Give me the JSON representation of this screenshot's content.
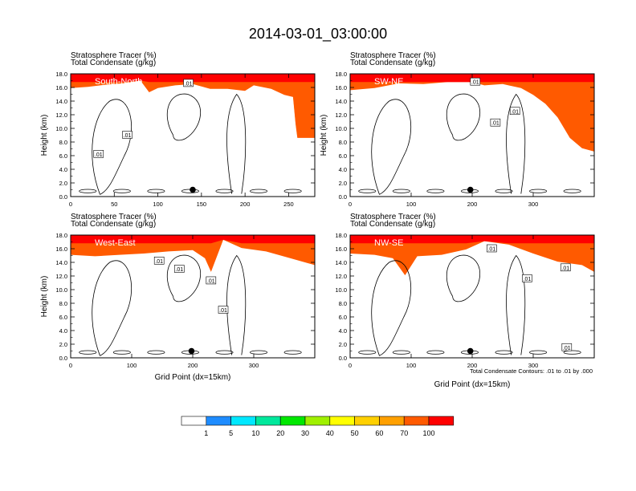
{
  "title": "2014-03-01_03:00:00",
  "footnote": "Total Condensate Contours: .01 to .01 by .000",
  "chart_data": [
    {
      "type": "heatmap",
      "header_line1": "Stratosphere Tracer   (%)",
      "header_line2": "Total Condensate   (g/kg)",
      "label": "South-North",
      "xlabel": "",
      "ylabel": "Height (km)",
      "xlim": [
        0,
        280
      ],
      "ylim": [
        0,
        18
      ],
      "xticks": [
        0,
        50,
        100,
        150,
        200,
        250
      ],
      "yticks": [
        "0.0",
        "2.0",
        "4.0",
        "6.0",
        "8.0",
        "10.0",
        "12.0",
        "14.0",
        "16.0",
        "18.0"
      ],
      "marker": [
        140,
        1.0
      ],
      "tracer_base_km": [
        [
          0,
          15.8
        ],
        [
          20,
          16
        ],
        [
          40,
          16.3
        ],
        [
          60,
          16.5
        ],
        [
          80,
          16.9
        ],
        [
          90,
          15.2
        ],
        [
          100,
          15.8
        ],
        [
          120,
          16.2
        ],
        [
          140,
          16.4
        ],
        [
          160,
          15.7
        ],
        [
          180,
          15.7
        ],
        [
          200,
          15.4
        ],
        [
          210,
          16.2
        ],
        [
          230,
          15.7
        ],
        [
          245,
          14.8
        ],
        [
          255,
          14.5
        ],
        [
          258,
          10.5
        ],
        [
          260,
          8.5
        ],
        [
          280,
          8.5
        ]
      ],
      "contour_labels": [
        {
          "text": ".01",
          "x": 135,
          "y": 16.6
        },
        {
          "text": ".01",
          "x": 65,
          "y": 9.0
        },
        {
          "text": ".01",
          "x": 32,
          "y": 6.2
        }
      ]
    },
    {
      "type": "heatmap",
      "header_line1": "Stratosphere Tracer   (%)",
      "header_line2": "Total Condensate   (g/kg)",
      "label": "SW-NE",
      "xlabel": "",
      "ylabel": "Height (km)",
      "xlim": [
        0,
        400
      ],
      "ylim": [
        0,
        18
      ],
      "xticks": [
        0,
        100,
        200,
        300
      ],
      "yticks": [
        "0.0",
        "2.0",
        "4.0",
        "6.0",
        "8.0",
        "10.0",
        "12.0",
        "14.0",
        "16.0",
        "18.0"
      ],
      "marker": [
        197,
        1.0
      ],
      "tracer_base_km": [
        [
          0,
          15.5
        ],
        [
          40,
          15.8
        ],
        [
          80,
          16.5
        ],
        [
          120,
          16.4
        ],
        [
          160,
          16.7
        ],
        [
          200,
          16.7
        ],
        [
          220,
          16.2
        ],
        [
          250,
          16.4
        ],
        [
          280,
          15.8
        ],
        [
          300,
          14.8
        ],
        [
          320,
          13.5
        ],
        [
          340,
          11.5
        ],
        [
          360,
          8.5
        ],
        [
          380,
          7.0
        ],
        [
          400,
          6.5
        ]
      ],
      "contour_labels": [
        {
          "text": ".01",
          "x": 205,
          "y": 16.8
        },
        {
          "text": ".01",
          "x": 270,
          "y": 12.5
        },
        {
          "text": ".01",
          "x": 238,
          "y": 10.8
        }
      ]
    },
    {
      "type": "heatmap",
      "header_line1": "Stratosphere Tracer   (%)",
      "header_line2": "Total Condensate   (g/kg)",
      "label": "West-East",
      "xlabel": "Grid Point (dx=15km)",
      "ylabel": "Height (km)",
      "xlim": [
        0,
        400
      ],
      "ylim": [
        0,
        18
      ],
      "xticks": [
        0,
        100,
        200,
        300
      ],
      "yticks": [
        "0.0",
        "2.0",
        "4.0",
        "6.0",
        "8.0",
        "10.0",
        "12.0",
        "14.0",
        "16.0",
        "18.0"
      ],
      "marker": [
        198,
        1.0
      ],
      "tracer_base_km": [
        [
          0,
          15.0
        ],
        [
          40,
          14.8
        ],
        [
          80,
          15.0
        ],
        [
          120,
          15.2
        ],
        [
          160,
          15.5
        ],
        [
          200,
          15.7
        ],
        [
          220,
          14.5
        ],
        [
          230,
          12.5
        ],
        [
          250,
          17.2
        ],
        [
          280,
          16.0
        ],
        [
          320,
          15.5
        ],
        [
          360,
          14.5
        ],
        [
          400,
          13.5
        ]
      ],
      "contour_labels": [
        {
          "text": ".01",
          "x": 145,
          "y": 14.2
        },
        {
          "text": ".01",
          "x": 178,
          "y": 13.0
        },
        {
          "text": ".01",
          "x": 230,
          "y": 11.3
        },
        {
          "text": ".01",
          "x": 250,
          "y": 7.0
        }
      ]
    },
    {
      "type": "heatmap",
      "header_line1": "Stratosphere Tracer   (%)",
      "header_line2": "Total Condensate   (g/kg)",
      "label": "NW-SE",
      "xlabel": "Grid Point (dx=15km)",
      "ylabel": "",
      "xlim": [
        0,
        400
      ],
      "ylim": [
        0,
        18
      ],
      "xticks": [
        0,
        100,
        200,
        300
      ],
      "yticks": [
        "0.0",
        "2.0",
        "4.0",
        "6.0",
        "8.0",
        "10.0",
        "12.0",
        "14.0",
        "16.0",
        "18.0"
      ],
      "marker": [
        197,
        1.0
      ],
      "tracer_base_km": [
        [
          0,
          15.2
        ],
        [
          40,
          15.0
        ],
        [
          70,
          14.5
        ],
        [
          90,
          12.0
        ],
        [
          110,
          14.8
        ],
        [
          150,
          15.0
        ],
        [
          190,
          15.8
        ],
        [
          220,
          17.0
        ],
        [
          260,
          16.5
        ],
        [
          300,
          15.2
        ],
        [
          340,
          14.0
        ],
        [
          380,
          13.5
        ],
        [
          400,
          12.5
        ]
      ],
      "contour_labels": [
        {
          "text": ".01",
          "x": 232,
          "y": 16.0
        },
        {
          "text": ".01",
          "x": 290,
          "y": 11.6
        },
        {
          "text": ".01",
          "x": 353,
          "y": 13.2
        },
        {
          "text": ".01",
          "x": 355,
          "y": 1.5
        }
      ]
    }
  ],
  "legend": {
    "colors": [
      "#ffffff",
      "#1e8cff",
      "#00e8ff",
      "#00e89c",
      "#00e800",
      "#a0f000",
      "#ffff00",
      "#ffd000",
      "#ffa000",
      "#ff5a00",
      "#ff0000"
    ],
    "labels": [
      "1",
      "5",
      "10",
      "20",
      "30",
      "40",
      "50",
      "60",
      "70",
      "100"
    ]
  }
}
